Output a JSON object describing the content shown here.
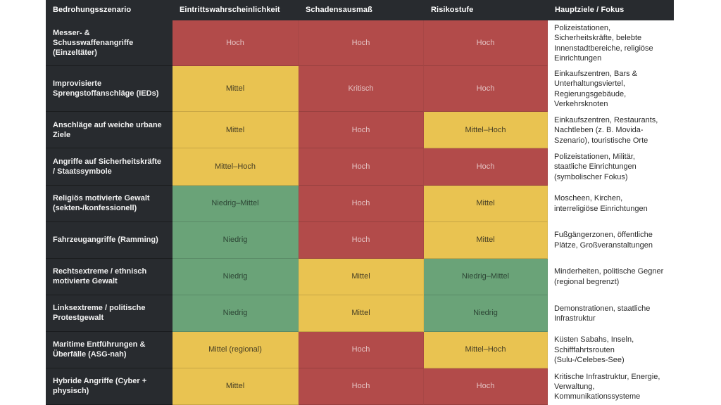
{
  "colors": {
    "dark": "#282b2f",
    "red": "#b24b4a",
    "yellow": "#e9c351",
    "green": "#6aa378"
  },
  "table": {
    "headers": [
      "Bedrohungsszenario",
      "Eintrittswahrscheinlichkeit",
      "Schadensausmaß",
      "Risikostufe",
      "Hauptziele / Fokus"
    ],
    "rows": [
      {
        "szenario": "Messer- & Schusswaffenangriffe (Einzeltäter)",
        "eintritt": {
          "label": "Hoch",
          "level": "red"
        },
        "schaden": {
          "label": "Hoch",
          "level": "red"
        },
        "risiko": {
          "label": "Hoch",
          "level": "red"
        },
        "ziele": "Polizeistationen, Sicherheitskräfte, belebte Innenstadtbereiche, religiöse Einrichtungen"
      },
      {
        "szenario": "Improvisierte Sprengstoffanschläge (IEDs)",
        "eintritt": {
          "label": "Mittel",
          "level": "yellow"
        },
        "schaden": {
          "label": "Kritisch",
          "level": "red"
        },
        "risiko": {
          "label": "Hoch",
          "level": "red"
        },
        "ziele": "Einkaufszentren, Bars & Unterhaltungsviertel, Regierungsgebäude, Verkehrsknoten"
      },
      {
        "szenario": "Anschläge auf weiche urbane Ziele",
        "eintritt": {
          "label": "Mittel",
          "level": "yellow"
        },
        "schaden": {
          "label": "Hoch",
          "level": "red"
        },
        "risiko": {
          "label": "Mittel–Hoch",
          "level": "yellow"
        },
        "ziele": "Einkaufszentren, Restaurants, Nachtleben (z. B. Movida-Szenario), touristische Orte"
      },
      {
        "szenario": "Angriffe auf Sicherheitskräfte / Staatssymbole",
        "eintritt": {
          "label": "Mittel–Hoch",
          "level": "yellow"
        },
        "schaden": {
          "label": "Hoch",
          "level": "red"
        },
        "risiko": {
          "label": "Hoch",
          "level": "red"
        },
        "ziele": "Polizeistationen, Militär, staatliche Einrichtungen (symbolischer Fokus)"
      },
      {
        "szenario": "Religiös motivierte Gewalt (sekten-/konfessionell)",
        "eintritt": {
          "label": "Niedrig–Mittel",
          "level": "green"
        },
        "schaden": {
          "label": "Hoch",
          "level": "red"
        },
        "risiko": {
          "label": "Mittel",
          "level": "yellow"
        },
        "ziele": "Moscheen, Kirchen, interreligiöse Einrichtungen"
      },
      {
        "szenario": "Fahrzeugangriffe (Ramming)",
        "eintritt": {
          "label": "Niedrig",
          "level": "green"
        },
        "schaden": {
          "label": "Hoch",
          "level": "red"
        },
        "risiko": {
          "label": "Mittel",
          "level": "yellow"
        },
        "ziele": "Fußgängerzonen, öffentliche Plätze, Großveranstaltungen"
      },
      {
        "szenario": "Rechtsextreme / ethnisch motivierte Gewalt",
        "eintritt": {
          "label": "Niedrig",
          "level": "green"
        },
        "schaden": {
          "label": "Mittel",
          "level": "yellow"
        },
        "risiko": {
          "label": "Niedrig–Mittel",
          "level": "green"
        },
        "ziele": "Minderheiten, politische Gegner (regional begrenzt)"
      },
      {
        "szenario": "Linksextreme / politische Protestgewalt",
        "eintritt": {
          "label": "Niedrig",
          "level": "green"
        },
        "schaden": {
          "label": "Mittel",
          "level": "yellow"
        },
        "risiko": {
          "label": "Niedrig",
          "level": "green"
        },
        "ziele": "Demonstrationen, staatliche Infrastruktur"
      },
      {
        "szenario": "Maritime Entführungen & Überfälle (ASG-nah)",
        "eintritt": {
          "label": "Mittel (regional)",
          "level": "yellow"
        },
        "schaden": {
          "label": "Hoch",
          "level": "red"
        },
        "risiko": {
          "label": "Mittel–Hoch",
          "level": "yellow"
        },
        "ziele": "Küsten Sabahs, Inseln, Schifffahrtsrouten (Sulu-/Celebes-See)"
      },
      {
        "szenario": "Hybride Angriffe (Cyber + physisch)",
        "eintritt": {
          "label": "Mittel",
          "level": "yellow"
        },
        "schaden": {
          "label": "Hoch",
          "level": "red"
        },
        "risiko": {
          "label": "Hoch",
          "level": "red"
        },
        "ziele": "Kritische Infrastruktur, Energie, Verwaltung, Kommunikationssysteme"
      }
    ]
  }
}
